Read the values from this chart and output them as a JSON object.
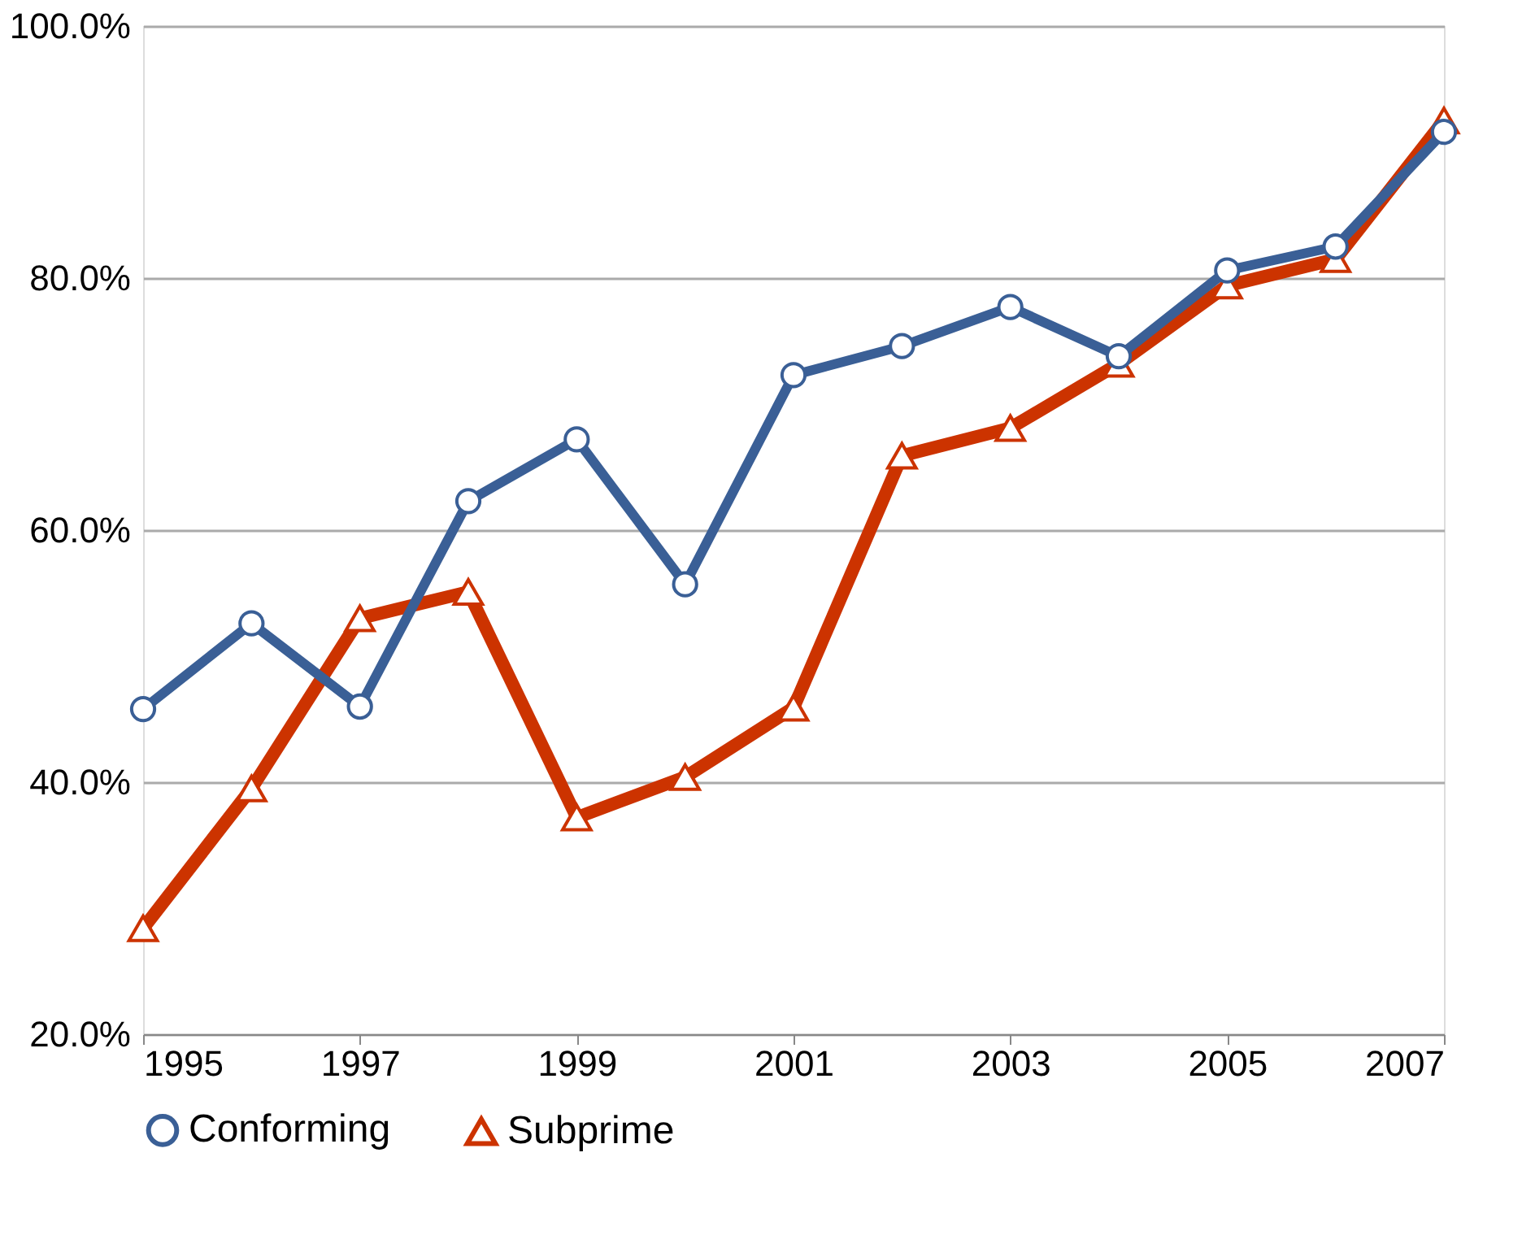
{
  "chart_data": {
    "type": "line",
    "x": [
      1995,
      1996,
      1997,
      1998,
      1999,
      2000,
      2001,
      2002,
      2003,
      2004,
      2005,
      2006,
      2007
    ],
    "series": [
      {
        "name": "Conforming",
        "color": "#3a5f96",
        "marker": "circle",
        "values": [
          45.8,
          52.6,
          46.0,
          62.3,
          67.2,
          55.7,
          72.3,
          74.6,
          77.7,
          73.8,
          80.6,
          82.5,
          91.6
        ]
      },
      {
        "name": "Subprime",
        "color": "#cc3300",
        "marker": "triangle",
        "values": [
          28.4,
          39.5,
          53.0,
          55.1,
          37.2,
          40.4,
          45.9,
          65.9,
          68.1,
          73.2,
          79.4,
          81.5,
          92.5
        ]
      }
    ],
    "xlim": [
      1995,
      2007
    ],
    "xticks": [
      1995,
      1997,
      1999,
      2001,
      2003,
      2005,
      2007
    ],
    "ylim": [
      20,
      100
    ],
    "yticks": [
      {
        "value": 20,
        "label": "20.0%"
      },
      {
        "value": 40,
        "label": "40.0%"
      },
      {
        "value": 60,
        "label": "60.0%"
      },
      {
        "value": 80,
        "label": "80.0%"
      },
      {
        "value": 100,
        "label": "100.0%"
      }
    ],
    "grid": "y",
    "legend": "bottom",
    "line_style": "solid"
  }
}
